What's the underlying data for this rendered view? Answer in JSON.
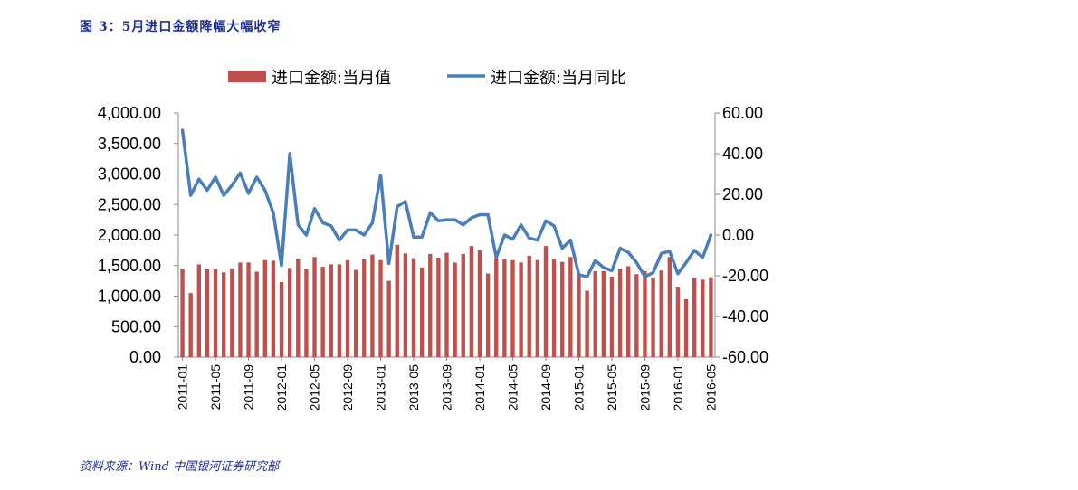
{
  "header": {
    "title": "图 3：5月进口金额降幅大幅收窄"
  },
  "footer": {
    "source": "资料来源：Wind 中国银河证券研究部"
  },
  "colors": {
    "bar": "#c0504d",
    "line": "#4a7ebb",
    "title": "#1f2f8c"
  },
  "chart_data": {
    "type": "bar+line",
    "grid": false,
    "legend_position": "top",
    "x": [
      "2011-01",
      "2011-02",
      "2011-03",
      "2011-04",
      "2011-05",
      "2011-06",
      "2011-07",
      "2011-08",
      "2011-09",
      "2011-10",
      "2011-11",
      "2011-12",
      "2012-01",
      "2012-02",
      "2012-03",
      "2012-04",
      "2012-05",
      "2012-06",
      "2012-07",
      "2012-08",
      "2012-09",
      "2012-10",
      "2012-11",
      "2012-12",
      "2013-01",
      "2013-02",
      "2013-03",
      "2013-04",
      "2013-05",
      "2013-06",
      "2013-07",
      "2013-08",
      "2013-09",
      "2013-10",
      "2013-11",
      "2013-12",
      "2014-01",
      "2014-02",
      "2014-03",
      "2014-04",
      "2014-05",
      "2014-06",
      "2014-07",
      "2014-08",
      "2014-09",
      "2014-10",
      "2014-11",
      "2014-12",
      "2015-01",
      "2015-02",
      "2015-03",
      "2015-04",
      "2015-05",
      "2015-06",
      "2015-07",
      "2015-08",
      "2015-09",
      "2015-10",
      "2015-11",
      "2015-12",
      "2016-01",
      "2016-02",
      "2016-03",
      "2016-04",
      "2016-05"
    ],
    "xtick_labels": [
      "2011-01",
      "2011-05",
      "2011-09",
      "2012-01",
      "2012-05",
      "2012-09",
      "2013-01",
      "2013-05",
      "2013-09",
      "2014-01",
      "2014-05",
      "2014-09",
      "2015-01",
      "2015-05",
      "2015-09",
      "2016-01",
      "2016-05"
    ],
    "series": [
      {
        "name": "进口金额:当月值",
        "type": "bar",
        "axis": "left",
        "values": [
          1450,
          1050,
          1520,
          1450,
          1440,
          1390,
          1450,
          1550,
          1550,
          1400,
          1590,
          1580,
          1230,
          1460,
          1610,
          1440,
          1640,
          1480,
          1520,
          1520,
          1590,
          1430,
          1600,
          1680,
          1590,
          1250,
          1840,
          1700,
          1620,
          1470,
          1690,
          1630,
          1710,
          1550,
          1690,
          1820,
          1750,
          1370,
          1620,
          1600,
          1590,
          1550,
          1660,
          1590,
          1820,
          1600,
          1560,
          1640,
          1370,
          1090,
          1410,
          1410,
          1320,
          1450,
          1490,
          1360,
          1410,
          1300,
          1420,
          1640,
          1140,
          950,
          1300,
          1270,
          1310
        ]
      },
      {
        "name": "进口金额:当月同比",
        "type": "line",
        "axis": "right",
        "values": [
          51.5,
          19.5,
          27.5,
          22,
          28.5,
          19.5,
          24.5,
          30.5,
          20.5,
          28.5,
          22,
          11,
          -15,
          40,
          5,
          0,
          13,
          6,
          4.5,
          -2.5,
          2.5,
          2.5,
          0,
          6,
          29.5,
          -14,
          14,
          16.5,
          -1,
          -1,
          11,
          7,
          7.5,
          7.5,
          5,
          8.5,
          10,
          10,
          -11,
          0,
          -2,
          5,
          -1.5,
          -2.5,
          7,
          4.5,
          -6.5,
          -2.5,
          -19.5,
          -20.5,
          -12.5,
          -16,
          -17.5,
          -6.5,
          -8.5,
          -13.5,
          -20.5,
          -18.5,
          -9,
          -8,
          -19,
          -13.5,
          -7.5,
          -11,
          0
        ]
      }
    ],
    "left_axis": {
      "ylim": [
        0,
        4000
      ],
      "ticks": [
        "0.00",
        "500.00",
        "1,000.00",
        "1,500.00",
        "2,000.00",
        "2,500.00",
        "3,000.00",
        "3,500.00",
        "4,000.00"
      ]
    },
    "right_axis": {
      "ylim": [
        -60,
        60
      ],
      "ticks": [
        "-60.00",
        "-40.00",
        "-20.00",
        "0.00",
        "20.00",
        "40.00",
        "60.00"
      ]
    }
  }
}
